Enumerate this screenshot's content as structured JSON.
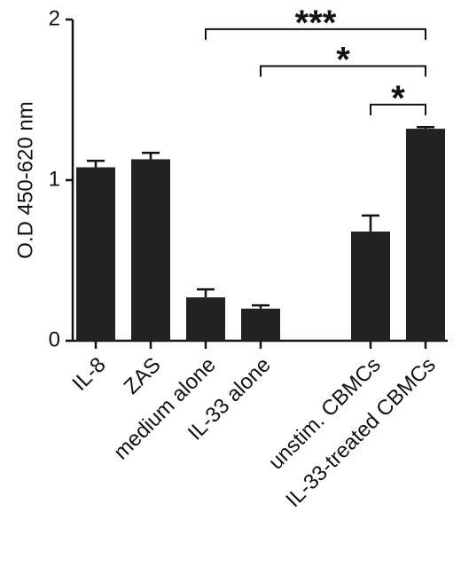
{
  "chart_data": {
    "type": "bar",
    "ylabel": "O.D 450-620 nm",
    "categories": [
      "IL-8",
      "ZAS",
      "medium alone",
      "IL-33 alone",
      null,
      "unstim. CBMCs",
      "IL-33-treated CBMCs"
    ],
    "values": [
      1.08,
      1.13,
      0.27,
      0.2,
      null,
      0.68,
      1.32
    ],
    "error": [
      0.04,
      0.04,
      0.05,
      0.02,
      null,
      0.1,
      0.01
    ],
    "color": "#222222",
    "ylim": [
      0,
      2
    ],
    "yticks": [
      0,
      1,
      2
    ],
    "annotations": [
      {
        "text": "***",
        "from": 2,
        "to": 6,
        "y": 1.94
      },
      {
        "text": "*",
        "from": 3,
        "to": 6,
        "y": 1.71
      },
      {
        "text": "*",
        "from": 5,
        "to": 6,
        "y": 1.47
      }
    ]
  }
}
